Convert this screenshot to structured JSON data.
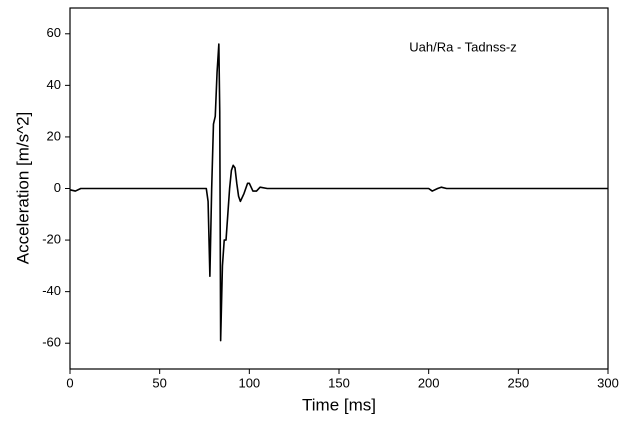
{
  "chart_data": {
    "type": "line",
    "annotation": "Uah/Ra - Tadnss-z",
    "x_label": "Time [ms]",
    "y_label": "Acceleration [m/s^2]",
    "x": [
      0,
      3,
      6,
      10,
      76,
      77,
      78,
      79,
      80,
      81,
      82,
      83,
      83.5,
      84,
      85,
      86,
      87,
      88,
      89,
      90,
      91,
      92,
      93,
      94,
      95,
      97,
      99,
      100,
      102,
      104,
      106,
      110,
      120,
      200,
      202,
      205,
      207,
      210,
      300
    ],
    "series": [
      {
        "name": "Uah/Ra - Tadnss-z",
        "color": "#000000",
        "values": [
          -0.5,
          -1,
          0,
          0,
          0,
          -5,
          -34,
          0,
          25,
          28,
          45,
          56,
          30,
          -59,
          -30,
          -20,
          -20,
          -10,
          0,
          7,
          9,
          8,
          2,
          -3,
          -5,
          -2,
          2,
          2,
          -1,
          -1,
          0.5,
          0,
          0,
          0,
          -1,
          0,
          0.5,
          0,
          0
        ]
      }
    ],
    "xlim": [
      0,
      300
    ],
    "xticks": [
      0,
      50,
      100,
      150,
      200,
      250,
      300
    ],
    "ylim": [
      -70,
      70
    ],
    "yticks": [
      -60,
      -40,
      -20,
      0,
      20,
      40,
      60
    ]
  }
}
